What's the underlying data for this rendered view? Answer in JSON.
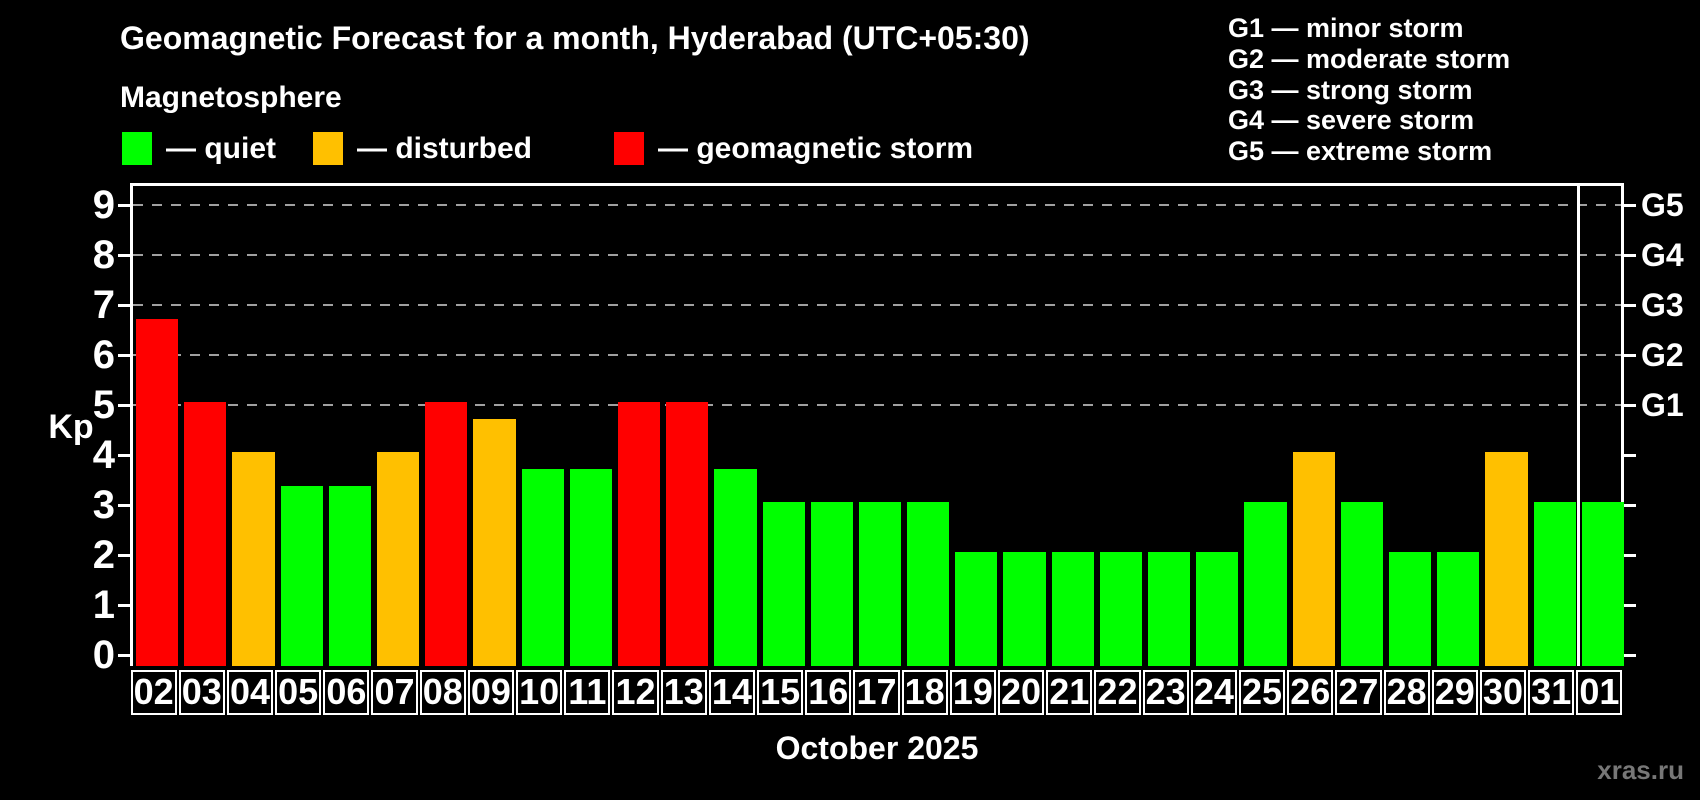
{
  "header": {
    "title": "Geomagnetic Forecast for a month, Hyderabad (UTC+05:30)",
    "subtitle": "Magnetosphere"
  },
  "legend": {
    "items": [
      {
        "name": "quiet",
        "label": "— quiet",
        "color": "#00ff00"
      },
      {
        "name": "disturbed",
        "label": "— disturbed",
        "color": "#ffc000"
      },
      {
        "name": "storm",
        "label": "— geomagnetic storm",
        "color": "#ff0000"
      }
    ]
  },
  "g_scale_legend": {
    "items": [
      "G1 — minor storm",
      "G2 — moderate storm",
      "G3 — strong storm",
      "G4 — severe storm",
      "G5 — extreme storm"
    ]
  },
  "watermark": "xras.ru",
  "chart_data": {
    "type": "bar",
    "title": "Geomagnetic Forecast for a month, Hyderabad (UTC+05:30)",
    "xlabel": "October 2025",
    "ylabel": "Kp",
    "ylim": [
      0,
      9.4
    ],
    "yticks": [
      0,
      1,
      2,
      3,
      4,
      5,
      6,
      7,
      8,
      9
    ],
    "gridlines_at_kp": [
      5,
      6,
      7,
      8,
      9
    ],
    "grid_style": "dashed horizontal gray lines at storm levels only",
    "right_axis": {
      "labels": [
        "G1",
        "G2",
        "G3",
        "G4",
        "G5"
      ],
      "at_kp": [
        5,
        6,
        7,
        8,
        9
      ]
    },
    "legend_position": "top-left",
    "month_separator_after_index": 29,
    "categories": [
      "02",
      "03",
      "04",
      "05",
      "06",
      "07",
      "08",
      "09",
      "10",
      "11",
      "12",
      "13",
      "14",
      "15",
      "16",
      "17",
      "18",
      "19",
      "20",
      "21",
      "22",
      "23",
      "24",
      "25",
      "26",
      "27",
      "28",
      "29",
      "30",
      "31",
      "01"
    ],
    "values": [
      6.67,
      5,
      4,
      3.33,
      3.33,
      4,
      5,
      4.67,
      3.67,
      3.67,
      5,
      5,
      3.67,
      3,
      3,
      3,
      3,
      2,
      2,
      2,
      2,
      2,
      2,
      3,
      4,
      3,
      2,
      2,
      4,
      3,
      3
    ],
    "statuses": [
      "storm",
      "storm",
      "disturbed",
      "quiet",
      "quiet",
      "disturbed",
      "storm",
      "disturbed",
      "quiet",
      "quiet",
      "storm",
      "storm",
      "quiet",
      "quiet",
      "quiet",
      "quiet",
      "quiet",
      "quiet",
      "quiet",
      "quiet",
      "quiet",
      "quiet",
      "quiet",
      "quiet",
      "disturbed",
      "quiet",
      "quiet",
      "quiet",
      "disturbed",
      "quiet",
      "quiet"
    ],
    "status_colors": {
      "quiet": "#00ff00",
      "disturbed": "#ffc000",
      "storm": "#ff0000"
    },
    "background_color": "#000000"
  }
}
